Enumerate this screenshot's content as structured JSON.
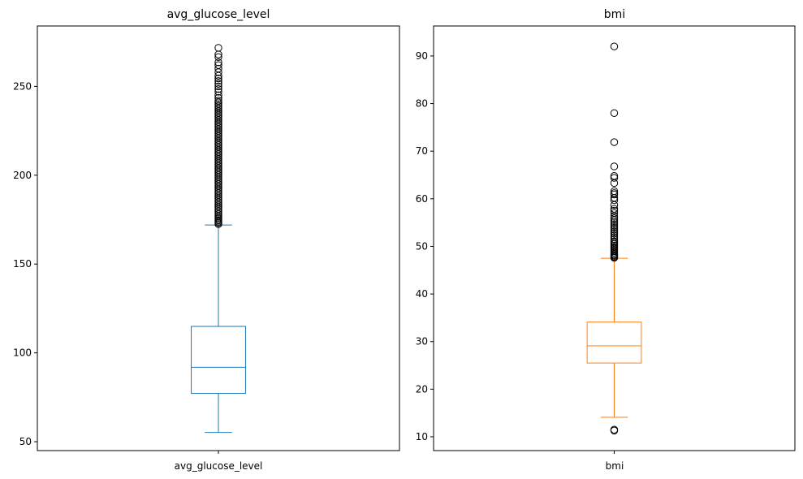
{
  "chart_data": [
    {
      "type": "box",
      "title": "avg_glucose_level",
      "category": "avg_glucose_level",
      "color": "#1f77b4",
      "ylim": [
        45,
        284
      ],
      "yticks": [
        50,
        100,
        150,
        200,
        250
      ],
      "box": {
        "whisker_low": 55.2,
        "q1": 77.2,
        "median": 91.9,
        "q3": 114.9,
        "whisker_high": 172.0
      },
      "outliers": [
        172.5,
        173.2,
        173.9,
        174.6,
        175.3,
        176.0,
        177.0,
        178.0,
        179.0,
        180.0,
        181.0,
        182.0,
        183.0,
        184.0,
        185.0,
        186.0,
        187.0,
        188.0,
        189.0,
        190.0,
        191.0,
        192.0,
        193.0,
        194.0,
        195.0,
        196.0,
        197.0,
        198.0,
        199.0,
        200.0,
        201.0,
        202.0,
        203.0,
        204.0,
        205.0,
        206.0,
        207.0,
        208.0,
        209.0,
        210.0,
        211.0,
        212.0,
        213.0,
        214.0,
        215.0,
        216.0,
        217.0,
        218.0,
        219.0,
        220.0,
        221.0,
        222.0,
        223.0,
        224.0,
        225.0,
        226.0,
        227.0,
        228.0,
        229.0,
        230.0,
        231.0,
        232.0,
        233.0,
        234.0,
        235.0,
        236.0,
        237.0,
        238.0,
        239.0,
        240.0,
        241.0,
        242.0,
        243.5,
        245.0,
        247.0,
        248.5,
        250.0,
        251.5,
        253.0,
        254.5,
        256.0,
        258.0,
        260.0,
        262.0,
        263.5,
        266.5,
        268.0,
        271.7
      ],
      "xlabel": "",
      "ylabel": ""
    },
    {
      "type": "box",
      "title": "bmi",
      "category": "bmi",
      "color": "#ff7f0e",
      "ylim": [
        7.1,
        96.3
      ],
      "yticks": [
        10,
        20,
        30,
        40,
        50,
        60,
        70,
        80,
        90
      ],
      "box": {
        "whisker_low": 14.1,
        "q1": 25.5,
        "median": 29.1,
        "q3": 34.1,
        "whisker_high": 47.5
      },
      "outliers": [
        11.3,
        11.5,
        47.6,
        47.8,
        48.0,
        48.2,
        48.4,
        48.7,
        49.0,
        49.3,
        49.6,
        49.9,
        50.2,
        50.5,
        50.8,
        51.1,
        51.5,
        51.9,
        52.3,
        52.7,
        53.1,
        53.5,
        53.9,
        54.3,
        54.7,
        55.1,
        55.5,
        55.9,
        56.4,
        57.0,
        57.5,
        57.9,
        58.7,
        59.7,
        60.2,
        60.9,
        61.2,
        61.6,
        63.3,
        64.4,
        64.8,
        66.8,
        71.9,
        78.0,
        92.0
      ],
      "xlabel": "",
      "ylabel": ""
    }
  ]
}
